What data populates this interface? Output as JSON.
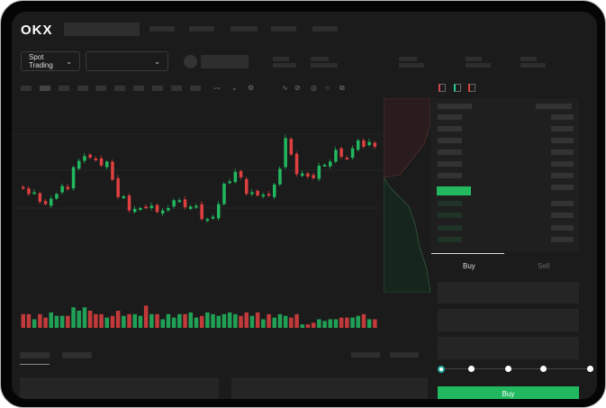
{
  "header": {
    "logo": "OKX"
  },
  "selectors": {
    "market_type": "Spot Trading",
    "pair": ""
  },
  "trade_form": {
    "tabs": [
      "Buy",
      "Sell"
    ],
    "active_tab": "Buy",
    "leverage_steps": 5,
    "selected_step": 0
  },
  "colors": {
    "up": "#22b860",
    "down": "#e04040",
    "background": "#1b1b1b"
  },
  "icons": [
    "okx-logo",
    "chevron-down-icon",
    "indicator-icon",
    "draw-icon",
    "orderbook-both-icon",
    "orderbook-buy-icon",
    "orderbook-sell-icon"
  ],
  "chart_data": {
    "type": "candlestick",
    "closes": [
      97,
      90,
      92,
      80,
      77,
      84,
      90,
      100,
      96,
      124,
      132,
      138,
      136,
      134,
      126,
      131,
      108,
      86,
      87,
      69,
      71,
      72,
      73,
      75,
      67,
      69,
      72,
      82,
      82,
      73,
      74,
      75,
      58,
      58,
      61,
      77,
      103,
      106,
      118,
      111,
      90,
      92,
      88,
      89,
      88,
      102,
      122,
      161,
      140,
      115,
      116,
      112,
      110,
      126,
      127,
      131,
      146,
      137,
      135,
      148,
      158,
      150,
      156,
      150
    ],
    "volumes": [
      8,
      8,
      5,
      8,
      6,
      9,
      7,
      7,
      7,
      12,
      10,
      12,
      10,
      8,
      8,
      6,
      7,
      10,
      7,
      8,
      8,
      7,
      13,
      8,
      8,
      5,
      8,
      6,
      8,
      8,
      9,
      6,
      7,
      9,
      8,
      7,
      8,
      9,
      8,
      7,
      9,
      7,
      9,
      5,
      8,
      6,
      8,
      7,
      6,
      8,
      2,
      2,
      3,
      5,
      4,
      5,
      5,
      6,
      6,
      6,
      7,
      8,
      5,
      5
    ]
  }
}
